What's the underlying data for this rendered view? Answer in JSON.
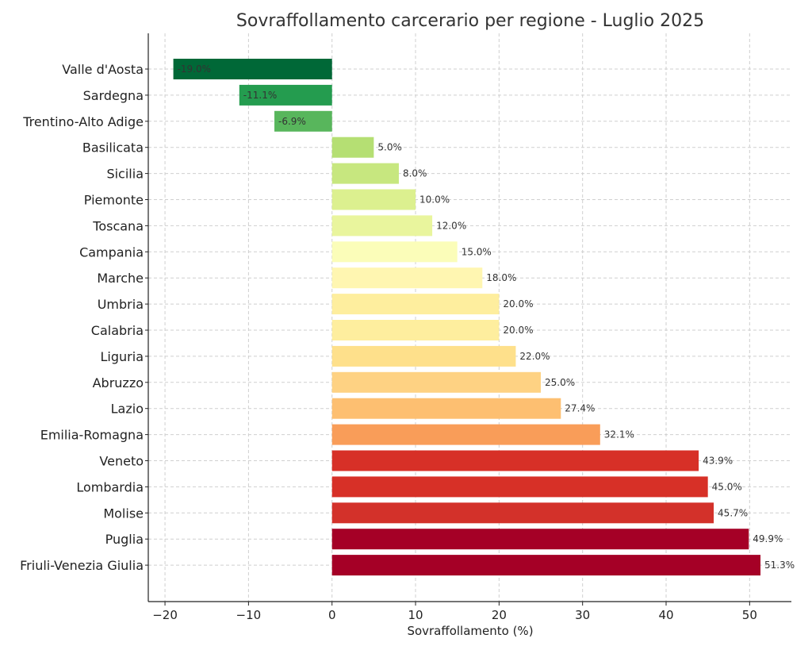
{
  "chart_data": {
    "type": "bar",
    "orientation": "horizontal",
    "title": "Sovraffollamento carcerario per regione - Luglio 2025",
    "xlabel": "Sovraffollamento (%)",
    "ylabel": "",
    "xlim": [
      -22,
      55
    ],
    "xticks": [
      -20,
      -10,
      0,
      10,
      20,
      30,
      40,
      50
    ],
    "xtick_labels": [
      "−20",
      "−10",
      "0",
      "10",
      "20",
      "30",
      "40",
      "50"
    ],
    "grid": true,
    "categories": [
      "Valle d'Aosta",
      "Sardegna",
      "Trentino-Alto Adige",
      "Basilicata",
      "Sicilia",
      "Piemonte",
      "Toscana",
      "Campania",
      "Marche",
      "Umbria",
      "Calabria",
      "Liguria",
      "Abruzzo",
      "Lazio",
      "Emilia-Romagna",
      "Veneto",
      "Lombardia",
      "Molise",
      "Puglia",
      "Friuli-Venezia Giulia"
    ],
    "values": [
      -19.0,
      -11.1,
      -6.9,
      5.0,
      8.0,
      10.0,
      12.0,
      15.0,
      18.0,
      20.0,
      20.0,
      22.0,
      25.0,
      27.4,
      32.1,
      43.9,
      45.0,
      45.7,
      49.9,
      51.3
    ],
    "labels": [
      "-19.0%",
      "-11.1%",
      "-6.9%",
      "5.0%",
      "8.0%",
      "10.0%",
      "12.0%",
      "15.0%",
      "18.0%",
      "20.0%",
      "20.0%",
      "22.0%",
      "25.0%",
      "27.4%",
      "32.1%",
      "43.9%",
      "45.0%",
      "45.7%",
      "49.9%",
      "51.3%"
    ],
    "colors": [
      "#006837",
      "#249c4f",
      "#58b65c",
      "#b5df73",
      "#c7e77f",
      "#dcf08f",
      "#e9f59d",
      "#fbfdb9",
      "#fff6b1",
      "#feee9e",
      "#feee9e",
      "#fee08b",
      "#fed283",
      "#fdbf71",
      "#f99d59",
      "#d73027",
      "#d73027",
      "#d3312a",
      "#a50026",
      "#a50026"
    ]
  }
}
